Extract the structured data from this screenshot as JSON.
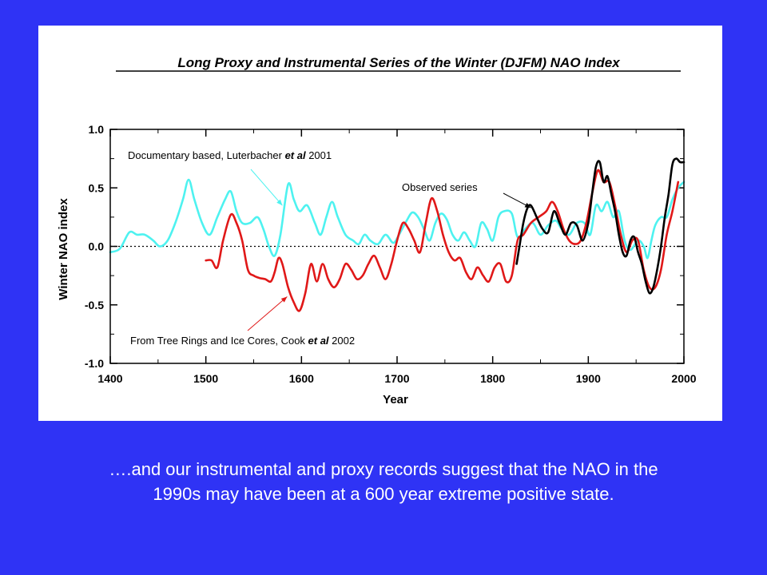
{
  "colors": {
    "background": "#2f33f5",
    "panel": "#ffffff",
    "documentary": "#4ef2f0",
    "tree_rings": "#e01818",
    "observed": "#000000",
    "caption_text": "#ffffff"
  },
  "chart_data": {
    "type": "line",
    "title": "Long Proxy and Instrumental Series of the Winter (DJFM) NAO Index",
    "xlabel": "Year",
    "ylabel": "Winter NAO index",
    "xlim": [
      1400,
      2000
    ],
    "ylim": [
      -1.0,
      1.0
    ],
    "x_ticks": [
      1400,
      1500,
      1600,
      1700,
      1800,
      1900,
      2000
    ],
    "x_tick_labels": [
      "1400",
      "1500",
      "1600",
      "1700",
      "1800",
      "1900",
      "2000"
    ],
    "y_ticks": [
      -1.0,
      -0.5,
      0.0,
      0.5,
      1.0
    ],
    "y_tick_labels": [
      "-1.0",
      "-0.5",
      "0.0",
      "0.5",
      "1.0"
    ],
    "zero_line": "dotted",
    "grid": false,
    "series": [
      {
        "key": "documentary",
        "color": "#4ef2f0",
        "x": [
          1400,
          1410,
          1420,
          1428,
          1436,
          1445,
          1452,
          1460,
          1468,
          1476,
          1482,
          1488,
          1496,
          1504,
          1512,
          1520,
          1526,
          1532,
          1538,
          1546,
          1554,
          1560,
          1566,
          1572,
          1578,
          1586,
          1592,
          1598,
          1606,
          1614,
          1620,
          1626,
          1632,
          1638,
          1646,
          1654,
          1660,
          1666,
          1672,
          1680,
          1688,
          1696,
          1702,
          1710,
          1716,
          1722,
          1728,
          1734,
          1740,
          1746,
          1752,
          1758,
          1764,
          1770,
          1776,
          1782,
          1788,
          1794,
          1800,
          1806,
          1812,
          1820,
          1826,
          1834,
          1842,
          1850,
          1858,
          1866,
          1872,
          1880,
          1888,
          1896,
          1902,
          1908,
          1914,
          1920,
          1926,
          1932,
          1938,
          1944,
          1952,
          1958,
          1962,
          1966,
          1970,
          1976,
          1982,
          1988,
          1994,
          2000
        ],
        "y": [
          -0.05,
          -0.02,
          0.12,
          0.1,
          0.1,
          0.05,
          0.0,
          0.05,
          0.2,
          0.4,
          0.57,
          0.4,
          0.2,
          0.1,
          0.25,
          0.4,
          0.47,
          0.3,
          0.2,
          0.2,
          0.25,
          0.15,
          0.0,
          -0.08,
          0.1,
          0.53,
          0.4,
          0.3,
          0.35,
          0.2,
          0.1,
          0.25,
          0.38,
          0.25,
          0.1,
          0.05,
          0.02,
          0.1,
          0.05,
          0.02,
          0.1,
          0.03,
          0.1,
          0.22,
          0.29,
          0.25,
          0.15,
          0.05,
          0.2,
          0.28,
          0.23,
          0.1,
          0.05,
          0.12,
          0.05,
          0.0,
          0.2,
          0.15,
          0.05,
          0.25,
          0.3,
          0.28,
          0.08,
          0.15,
          0.2,
          0.1,
          0.18,
          0.22,
          0.15,
          0.1,
          0.2,
          0.2,
          0.1,
          0.35,
          0.3,
          0.38,
          0.25,
          0.3,
          0.05,
          -0.03,
          0.05,
          0.0,
          -0.1,
          0.05,
          0.18,
          0.25,
          0.25,
          0.4,
          0.5,
          0.55
        ]
      },
      {
        "key": "tree_rings",
        "color": "#e01818",
        "x": [
          1500,
          1506,
          1512,
          1518,
          1526,
          1532,
          1538,
          1544,
          1550,
          1556,
          1562,
          1568,
          1572,
          1576,
          1580,
          1586,
          1592,
          1598,
          1604,
          1610,
          1616,
          1622,
          1628,
          1634,
          1640,
          1646,
          1652,
          1658,
          1664,
          1670,
          1676,
          1682,
          1688,
          1694,
          1700,
          1706,
          1712,
          1718,
          1724,
          1730,
          1736,
          1742,
          1748,
          1754,
          1760,
          1766,
          1772,
          1778,
          1784,
          1790,
          1796,
          1802,
          1808,
          1814,
          1820,
          1826,
          1832,
          1840,
          1848,
          1856,
          1862,
          1868,
          1874,
          1880,
          1886,
          1892,
          1898,
          1904,
          1910,
          1916,
          1922,
          1928,
          1934,
          1940,
          1946,
          1952,
          1958,
          1964,
          1970,
          1976,
          1982,
          1988,
          1994
        ],
        "y": [
          -0.12,
          -0.12,
          -0.18,
          0.05,
          0.27,
          0.2,
          0.05,
          -0.2,
          -0.25,
          -0.27,
          -0.28,
          -0.3,
          -0.22,
          -0.1,
          -0.15,
          -0.35,
          -0.48,
          -0.55,
          -0.4,
          -0.15,
          -0.3,
          -0.15,
          -0.28,
          -0.35,
          -0.28,
          -0.15,
          -0.2,
          -0.28,
          -0.25,
          -0.15,
          -0.08,
          -0.18,
          -0.28,
          -0.15,
          0.05,
          0.2,
          0.15,
          0.05,
          -0.05,
          0.2,
          0.41,
          0.3,
          0.1,
          -0.05,
          -0.12,
          -0.1,
          -0.22,
          -0.28,
          -0.18,
          -0.25,
          -0.3,
          -0.18,
          -0.15,
          -0.3,
          -0.25,
          0.05,
          0.1,
          0.2,
          0.25,
          0.3,
          0.38,
          0.3,
          0.15,
          0.05,
          0.02,
          0.05,
          0.2,
          0.45,
          0.65,
          0.55,
          0.55,
          0.35,
          0.1,
          -0.05,
          0.05,
          0.05,
          -0.2,
          -0.35,
          -0.35,
          -0.2,
          0.1,
          0.3,
          0.55
        ]
      },
      {
        "key": "observed",
        "color": "#000000",
        "x": [
          1825,
          1828,
          1832,
          1836,
          1840,
          1846,
          1852,
          1858,
          1864,
          1870,
          1876,
          1882,
          1888,
          1894,
          1900,
          1904,
          1908,
          1912,
          1916,
          1920,
          1924,
          1928,
          1932,
          1936,
          1940,
          1944,
          1948,
          1952,
          1956,
          1960,
          1964,
          1968,
          1972,
          1976,
          1980,
          1984,
          1988,
          1992,
          1996,
          2000
        ],
        "y": [
          -0.15,
          0.0,
          0.2,
          0.32,
          0.35,
          0.25,
          0.15,
          0.12,
          0.3,
          0.2,
          0.1,
          0.2,
          0.18,
          0.05,
          0.2,
          0.45,
          0.68,
          0.72,
          0.55,
          0.6,
          0.45,
          0.3,
          0.1,
          -0.05,
          -0.08,
          0.05,
          0.08,
          -0.05,
          -0.15,
          -0.3,
          -0.4,
          -0.35,
          -0.2,
          0.0,
          0.25,
          0.45,
          0.7,
          0.75,
          0.72,
          0.72
        ]
      }
    ],
    "annotations": [
      {
        "key": "documentary",
        "text_main": "Documentary based, Luterbacher ",
        "text_italic": "et al",
        "text_tail": " 2001",
        "arrow_to": [
          1580,
          0.35
        ]
      },
      {
        "key": "observed",
        "text_main": "Observed series",
        "arrow_to": [
          1840,
          0.33
        ]
      },
      {
        "key": "tree_rings",
        "text_main": "From Tree Rings and Ice Cores, Cook ",
        "text_italic": "et al",
        "text_tail": " 2002",
        "arrow_to": [
          1585,
          -0.43
        ]
      }
    ]
  },
  "caption": {
    "line1": "….and our instrumental and proxy records suggest that the NAO in the",
    "line2": "1990s may have been at a 600 year extreme positive state."
  }
}
